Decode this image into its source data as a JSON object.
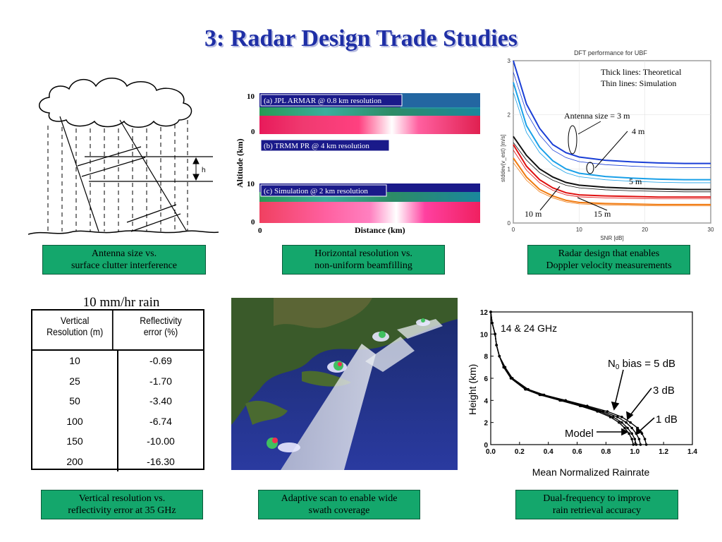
{
  "title": "3: Radar Design Trade Studies",
  "panel_clutter": {
    "dim_label": "h",
    "caption": "Antenna size vs.\nsurface clutter interference"
  },
  "panel_beamfill": {
    "strips": [
      "(a) JPL ARMAR @ 0.8 km resolution",
      "(b) TRMM PR @ 4 km resolution",
      "(c) Simulation @ 2 km resolution"
    ],
    "y_ticks_a": [
      "10",
      "0"
    ],
    "y_ticks_b": [
      "10",
      "0"
    ],
    "ylabel": "Altitude (km)",
    "xlabel": "Distance (km)",
    "x_tick": "0",
    "caption": "Horizontal resolution vs.\nnon-uniform beamfilling"
  },
  "panel_doppler": {
    "chart_title": "DFT performance for UBF",
    "legend_line1": "Thick lines: Theoretical",
    "legend_line2": "Thin lines:  Simulation",
    "ann_3m": "Antenna size = 3 m",
    "ann_4m": "4 m",
    "ann_5m": "5 m",
    "ann_10m": "10 m",
    "ann_15m": "15 m",
    "ylabel": "stddev(v_est) [m/s]",
    "xlabel": "SNR [dB]",
    "caption": "Radar design that enables\nDoppler velocity measurements"
  },
  "panel_table": {
    "title": "10 mm/hr rain",
    "col1": "Vertical\nResolution (m)",
    "col2": "Reflectivity\nerror (%)",
    "rows": [
      {
        "res": "10",
        "err": "-0.69"
      },
      {
        "res": "25",
        "err": "-1.70"
      },
      {
        "res": "50",
        "err": "-3.40"
      },
      {
        "res": "100",
        "err": "-6.74"
      },
      {
        "res": "150",
        "err": "-10.00"
      },
      {
        "res": "200",
        "err": "-16.30"
      }
    ],
    "caption": "Vertical resolution vs.\nreflectivity error at 35 GHz"
  },
  "panel_scan": {
    "caption": "Adaptive scan to enable wide\nswath coverage"
  },
  "panel_dualfreq": {
    "freq_label": "14 & 24 GHz",
    "ann_5db_pre": "N",
    "ann_5db_sub": "0",
    "ann_5db_post": " bias = 5 dB",
    "ann_3db": "3 dB",
    "ann_1db": "1 dB",
    "ann_model": "Model",
    "ylabel": "Height (km)",
    "xlabel": "Mean Normalized Rainrate",
    "caption": "Dual-frequency to improve\nrain retrieval accuracy"
  },
  "chart_data": [
    {
      "type": "line",
      "title": "DFT performance for UBF",
      "xlabel": "SNR [dB]",
      "ylabel": "stddev(v_est) [m/s]",
      "xlim": [
        0,
        30
      ],
      "ylim": [
        0,
        3
      ],
      "x_ticks": [
        0,
        10,
        20,
        30
      ],
      "y_ticks": [
        0,
        1,
        2,
        3
      ],
      "x": [
        0,
        2,
        4,
        6,
        8,
        10,
        14,
        18,
        22,
        26,
        30
      ],
      "series": [
        {
          "name": "3 m",
          "color": "#1a3fd6",
          "values": [
            3.0,
            2.2,
            1.75,
            1.45,
            1.3,
            1.22,
            1.16,
            1.13,
            1.11,
            1.1,
            1.1
          ]
        },
        {
          "name": "4 m",
          "color": "#1aa0e8",
          "values": [
            2.6,
            1.8,
            1.4,
            1.15,
            1.0,
            0.92,
            0.86,
            0.83,
            0.81,
            0.8,
            0.8
          ]
        },
        {
          "name": "5 m",
          "color": "#111111",
          "values": [
            1.6,
            1.25,
            1.0,
            0.85,
            0.75,
            0.7,
            0.66,
            0.64,
            0.63,
            0.62,
            0.62
          ]
        },
        {
          "name": "10 m",
          "color": "#e01010",
          "values": [
            1.45,
            1.05,
            0.8,
            0.65,
            0.56,
            0.52,
            0.5,
            0.49,
            0.48,
            0.48,
            0.48
          ]
        },
        {
          "name": "15 m",
          "color": "#f07a10",
          "values": [
            1.2,
            0.85,
            0.62,
            0.5,
            0.42,
            0.38,
            0.36,
            0.35,
            0.34,
            0.34,
            0.34
          ]
        }
      ]
    },
    {
      "type": "line",
      "xlabel": "Mean Normalized Rainrate",
      "ylabel": "Height (km)",
      "xlim": [
        0,
        1.4
      ],
      "ylim": [
        0,
        12
      ],
      "x_ticks": [
        "0.0",
        "0.2",
        "0.4",
        "0.6",
        "0.8",
        "1.0",
        "1.2",
        "1.4"
      ],
      "y_ticks": [
        "0",
        "2",
        "4",
        "6",
        "8",
        "10",
        "12"
      ],
      "y": [
        0,
        0.5,
        1,
        1.5,
        2,
        2.5,
        3,
        3.5,
        4,
        4.5,
        5,
        6,
        7,
        8,
        9,
        10,
        11,
        12
      ],
      "series": [
        {
          "name": "Model",
          "values": [
            0.99,
            0.98,
            0.96,
            0.93,
            0.89,
            0.83,
            0.74,
            0.62,
            0.48,
            0.34,
            0.24,
            0.14,
            0.09,
            0.06,
            0.04,
            0.03,
            0.01,
            0.0
          ]
        },
        {
          "name": "1 dB",
          "values": [
            1.01,
            1.0,
            0.98,
            0.95,
            0.91,
            0.85,
            0.76,
            0.63,
            0.49,
            0.35,
            0.24,
            0.14,
            0.09,
            0.06,
            0.04,
            0.03,
            0.01,
            0.0
          ]
        },
        {
          "name": "3 dB",
          "values": [
            1.04,
            1.03,
            1.01,
            0.98,
            0.94,
            0.88,
            0.78,
            0.65,
            0.5,
            0.36,
            0.25,
            0.15,
            0.09,
            0.06,
            0.04,
            0.03,
            0.01,
            0.0
          ]
        },
        {
          "name": "5 dB",
          "values": [
            1.08,
            1.07,
            1.05,
            1.02,
            0.97,
            0.91,
            0.81,
            0.67,
            0.52,
            0.37,
            0.26,
            0.15,
            0.1,
            0.06,
            0.04,
            0.03,
            0.01,
            0.0
          ]
        }
      ]
    }
  ]
}
